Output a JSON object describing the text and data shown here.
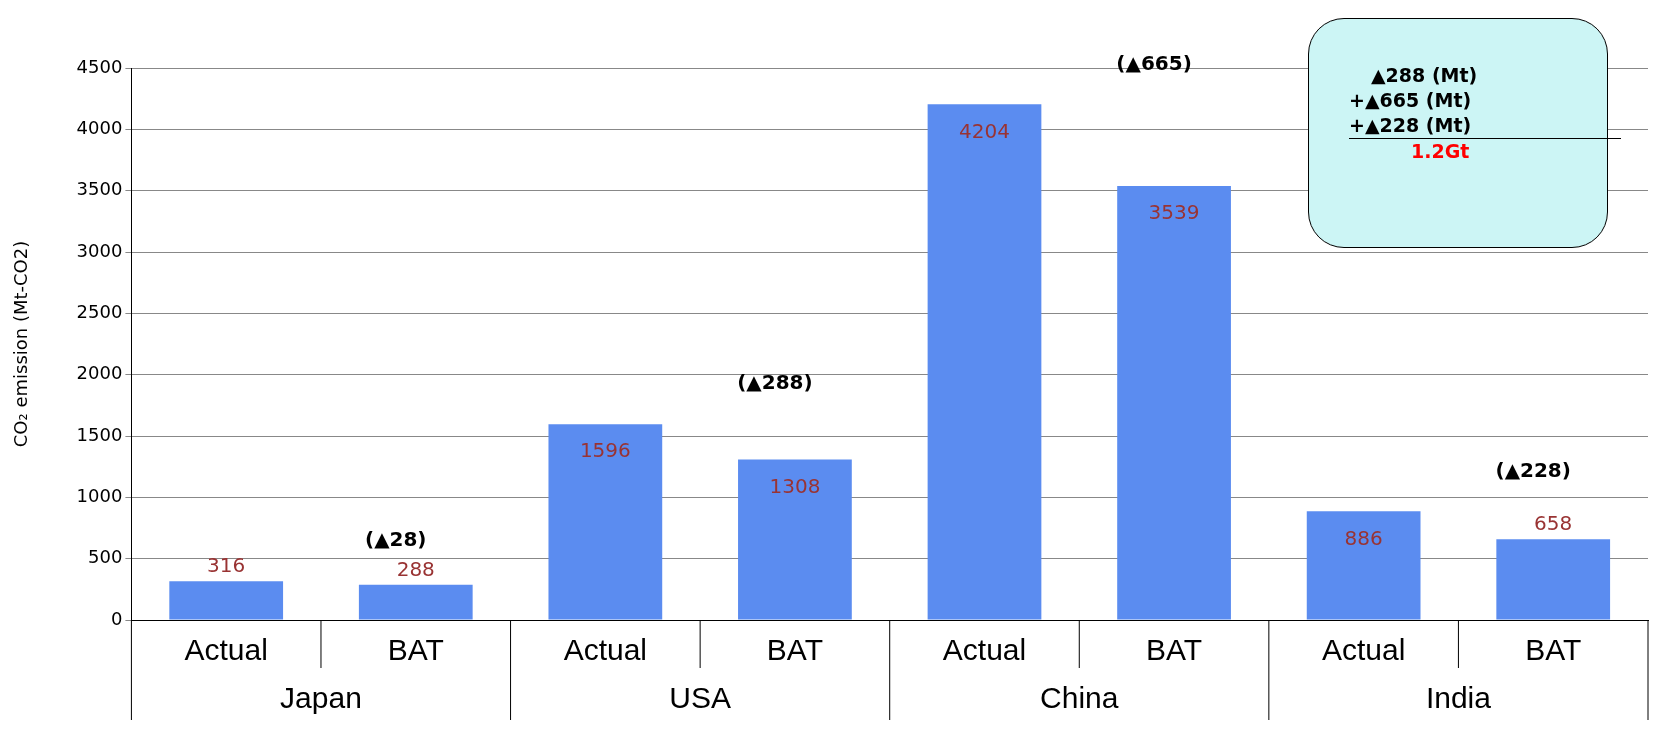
{
  "chart_data": {
    "type": "bar",
    "ylabel": "CO₂ emission (Mt-CO2)",
    "categories": [
      "Actual",
      "BAT",
      "Actual",
      "BAT",
      "Actual",
      "BAT",
      "Actual",
      "BAT"
    ],
    "values": [
      316,
      288,
      1596,
      1308,
      4204,
      3539,
      886,
      658
    ],
    "color": "#5b8cf0",
    "data_labels": true,
    "ylim": [
      0,
      4500
    ],
    "yticks": [
      0,
      500,
      1000,
      1500,
      2000,
      2500,
      3000,
      3500,
      4000,
      4500
    ],
    "grid": "y",
    "annotations": [
      "Japan",
      "USA",
      "China",
      "India",
      "(▲28)",
      "(▲288)",
      "(▲665)",
      "(▲228)",
      "▲288 (Mt)",
      "+▲665 (Mt)",
      "+▲228 (Mt)",
      "1.2Gt"
    ]
  }
}
